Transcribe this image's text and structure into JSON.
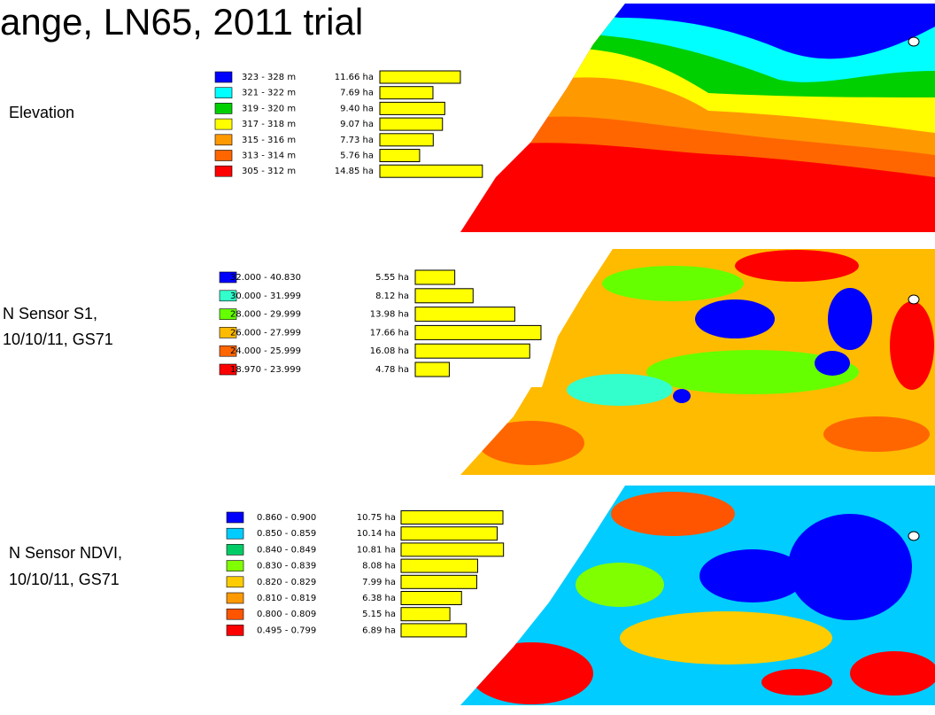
{
  "title": "ange, LN65, 2011 trial",
  "panels": [
    {
      "label": [
        "Elevation"
      ],
      "ranges": [
        "323 - 328 m",
        "321 - 322 m",
        "319 - 320 m",
        "317 - 318 m",
        "315 - 316 m",
        "313 - 314 m",
        "305 - 312 m"
      ],
      "colors": [
        "#0000ff",
        "#00ffff",
        "#00d000",
        "#ffff00",
        "#ff9900",
        "#ff6600",
        "#ff0000"
      ],
      "values": [
        11.66,
        7.69,
        9.4,
        9.07,
        7.73,
        5.76,
        14.85
      ],
      "value_labels": [
        "11.66 ha",
        "7.69 ha",
        "9.40 ha",
        "9.07 ha",
        "7.73 ha",
        "5.76 ha",
        "14.85 ha"
      ]
    },
    {
      "label": [
        "N Sensor S1,",
        "10/10/11, GS71"
      ],
      "ranges": [
        "32.000 - 40.830",
        "30.000 - 31.999",
        "28.000 - 29.999",
        "26.000 - 27.999",
        "24.000 - 25.999",
        "18.970 - 23.999"
      ],
      "colors": [
        "#0000ff",
        "#33ffcc",
        "#66ff00",
        "#ffbb00",
        "#ff6600",
        "#ff0000"
      ],
      "values": [
        5.55,
        8.12,
        13.98,
        17.66,
        16.08,
        4.78
      ],
      "value_labels": [
        "5.55 ha",
        "8.12 ha",
        "13.98 ha",
        "17.66 ha",
        "16.08 ha",
        "4.78 ha"
      ]
    },
    {
      "label": [
        "N Sensor NDVI,",
        "10/10/11, GS71"
      ],
      "ranges": [
        "0.860 - 0.900",
        "0.850 - 0.859",
        "0.840 - 0.849",
        "0.830 - 0.839",
        "0.820 - 0.829",
        "0.810 - 0.819",
        "0.800 - 0.809",
        "0.495 - 0.799"
      ],
      "colors": [
        "#0000ff",
        "#00ccff",
        "#00cc66",
        "#80ff00",
        "#ffcc00",
        "#ff9900",
        "#ff5500",
        "#ff0000"
      ],
      "values": [
        10.75,
        10.14,
        10.81,
        8.08,
        7.99,
        6.38,
        5.15,
        6.89
      ],
      "value_labels": [
        "10.75 ha",
        "10.14 ha",
        "10.81 ha",
        "8.08 ha",
        "7.99 ha",
        "6.38 ha",
        "5.15 ha",
        "6.89 ha"
      ]
    }
  ]
}
